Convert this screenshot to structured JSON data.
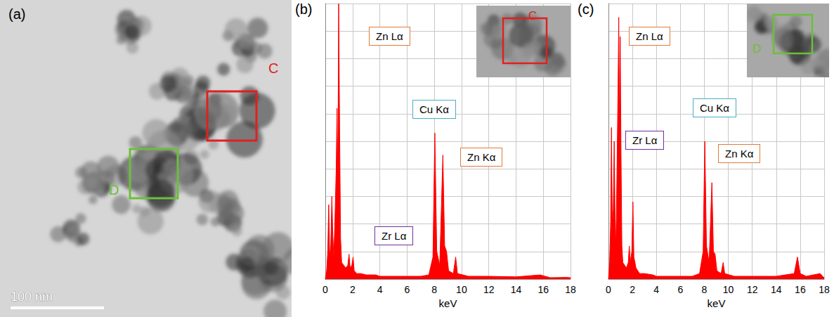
{
  "panel_a": {
    "letter": "(a)",
    "scale_bar": "100 nm",
    "regions": [
      {
        "label": "C",
        "color": "#e02020"
      },
      {
        "label": "D",
        "color": "#6cbf3a"
      }
    ]
  },
  "chart_data": [
    {
      "type": "line",
      "letter": "(b)",
      "inset_label": "C",
      "inset_color": "#e02020",
      "xlabel": "keV",
      "xlim": [
        0,
        18
      ],
      "xticks": [
        0,
        2,
        4,
        6,
        8,
        10,
        12,
        14,
        16,
        18
      ],
      "ylim": [
        0,
        100
      ],
      "yticks": [
        0,
        10,
        20,
        30,
        40,
        50,
        60,
        70,
        80,
        90,
        100
      ],
      "tick_labels": "x",
      "grid": true,
      "color": "#ff0000",
      "annotations": [
        {
          "text": "Zn Lα",
          "color": "#e07b39"
        },
        {
          "text": "Cu Kα",
          "color": "#4bacc6"
        },
        {
          "text": "Zr Lα",
          "color": "#7030a0"
        },
        {
          "text": "Zn Kα",
          "color": "#e07b39"
        }
      ],
      "x": [
        0.0,
        0.1,
        0.18,
        0.25,
        0.32,
        0.4,
        0.48,
        0.55,
        0.62,
        0.7,
        0.8,
        0.86,
        0.92,
        0.98,
        1.05,
        1.12,
        1.2,
        1.35,
        1.5,
        1.65,
        1.74,
        1.82,
        1.95,
        2.04,
        2.12,
        2.3,
        2.6,
        3.0,
        3.7,
        4.0,
        5.5,
        6.0,
        7.0,
        7.6,
        7.9,
        8.04,
        8.18,
        8.4,
        8.63,
        8.76,
        8.9,
        9.05,
        9.4,
        9.57,
        9.7,
        10.5,
        12,
        14,
        15.77,
        16.5,
        17.7,
        18
      ],
      "values": [
        0,
        3,
        10,
        27,
        8,
        12,
        30,
        16,
        8,
        20,
        40,
        62,
        35,
        100,
        55,
        15,
        6,
        5,
        4,
        5,
        9,
        4,
        5,
        8,
        3,
        2,
        2,
        1.5,
        1.5,
        1,
        1,
        1,
        1,
        1.5,
        8,
        53,
        10,
        5,
        45,
        12,
        10,
        3,
        2,
        8,
        2,
        1,
        1,
        0.8,
        1.5,
        0.5,
        0.6,
        0.5
      ]
    },
    {
      "type": "line",
      "letter": "(c)",
      "inset_label": "D",
      "inset_color": "#6cbf3a",
      "xlabel": "keV",
      "xlim": [
        0,
        18
      ],
      "xticks": [
        0,
        2,
        4,
        6,
        8,
        10,
        12,
        14,
        16,
        18
      ],
      "ylim": [
        0,
        100
      ],
      "yticks": [
        0,
        10,
        20,
        30,
        40,
        50,
        60,
        70,
        80,
        90,
        100
      ],
      "tick_labels": "x",
      "grid": true,
      "color": "#ff0000",
      "annotations": [
        {
          "text": "Zn Lα",
          "color": "#e07b39"
        },
        {
          "text": "Cu Kα",
          "color": "#4bacc6"
        },
        {
          "text": "Zr Lα",
          "color": "#7030a0"
        },
        {
          "text": "Zn Kα",
          "color": "#e07b39"
        }
      ],
      "x": [
        0.0,
        0.1,
        0.18,
        0.25,
        0.32,
        0.4,
        0.48,
        0.55,
        0.62,
        0.7,
        0.8,
        0.86,
        0.92,
        0.98,
        1.05,
        1.12,
        1.2,
        1.35,
        1.5,
        1.65,
        1.74,
        1.82,
        1.95,
        2.04,
        2.12,
        2.3,
        2.6,
        3.0,
        3.7,
        4.0,
        5.5,
        6.0,
        7.0,
        7.6,
        7.9,
        8.04,
        8.18,
        8.4,
        8.63,
        8.76,
        8.9,
        9.05,
        9.4,
        9.57,
        9.7,
        10.5,
        12,
        14,
        15.5,
        15.77,
        16.0,
        16.5,
        17.67,
        17.9,
        18
      ],
      "values": [
        0,
        6,
        20,
        55,
        20,
        25,
        50,
        22,
        12,
        35,
        70,
        95,
        50,
        88,
        45,
        12,
        6,
        5,
        4,
        6,
        12,
        6,
        10,
        28,
        8,
        4,
        2,
        2,
        1.5,
        1,
        1,
        1,
        1,
        2,
        10,
        50,
        12,
        6,
        35,
        10,
        9,
        3,
        2,
        6,
        2,
        1,
        1,
        1,
        2,
        8,
        2,
        1,
        2,
        0.8,
        0.5
      ]
    }
  ]
}
